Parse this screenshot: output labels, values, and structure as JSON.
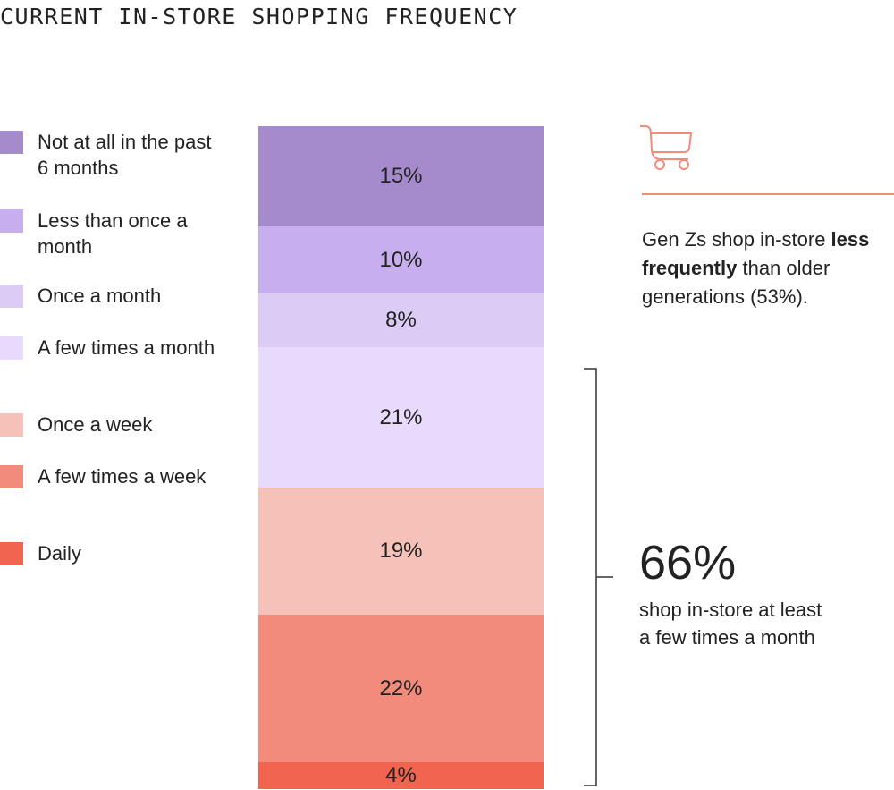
{
  "chart_data": {
    "type": "bar",
    "stacked": true,
    "title": "CURRENT IN-STORE SHOPPING FREQUENCY",
    "categories": [
      "Not at all in the past 6 months",
      "Less than once a month",
      "Once a month",
      "A few times a month",
      "Once a week",
      "A few times a week",
      "Daily"
    ],
    "values": [
      15,
      10,
      8,
      21,
      19,
      22,
      4
    ],
    "labels": [
      "15%",
      "10%",
      "8%",
      "21%",
      "19%",
      "22%",
      "4%"
    ],
    "colors": [
      "#a58bcb",
      "#c7aeee",
      "#dccbf5",
      "#e8dafc",
      "#f6c1b8",
      "#f28b7b",
      "#f06450"
    ],
    "legend_position": "left"
  },
  "note": {
    "pre": "Gen Zs shop in-store ",
    "bold": "less frequently",
    "post": " than older generations (53%)."
  },
  "callout": {
    "value": "66%",
    "text": "shop in-store at least a few times a month"
  },
  "icon": "shopping-cart-icon",
  "accent": "#f28b7b"
}
